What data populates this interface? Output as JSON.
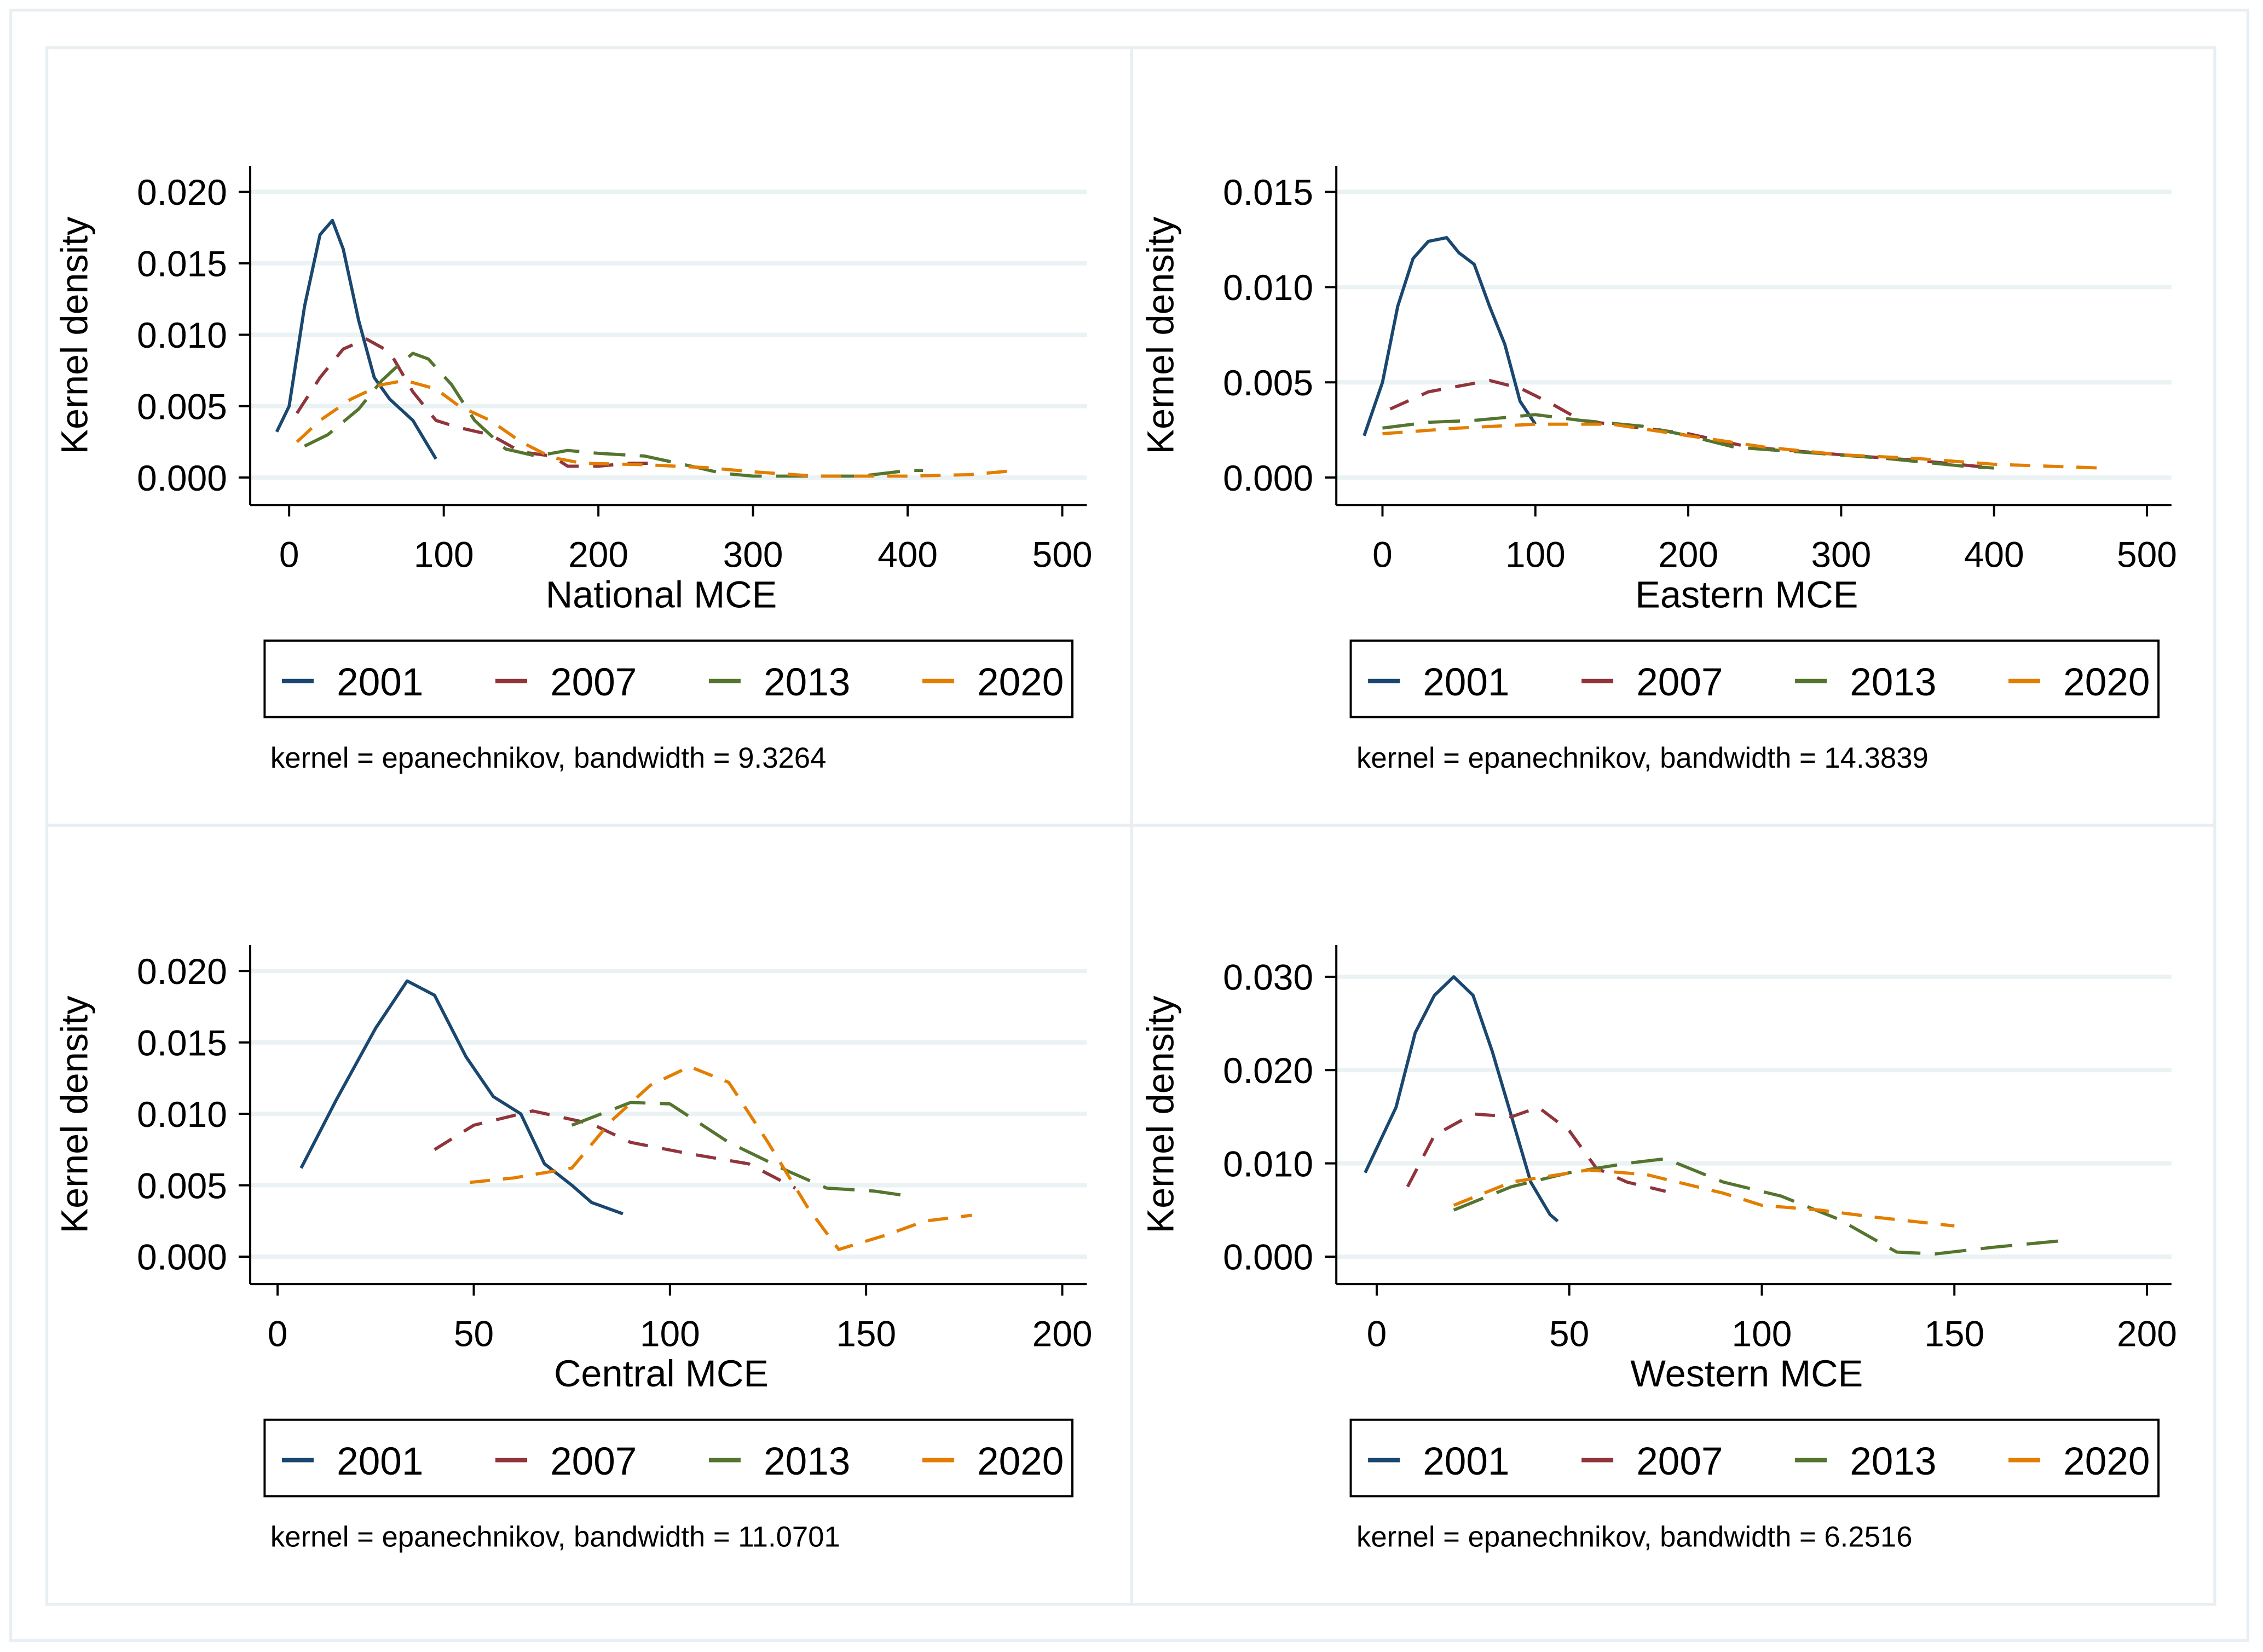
{
  "colors": {
    "2001": "#1a476f",
    "2007": "#90353b",
    "2013": "#55752f",
    "2020": "#e37e00"
  },
  "chart_data": [
    {
      "type": "line",
      "xlabel": "National MCE",
      "ylabel": "Kernel density",
      "xlim": [
        0,
        500
      ],
      "ylim": [
        0,
        0.02
      ],
      "xticks": [
        "0",
        "100",
        "200",
        "300",
        "400",
        "500"
      ],
      "yticks": [
        "0.000",
        "0.005",
        "0.010",
        "0.015",
        "0.020"
      ],
      "grid": true,
      "legend": [
        "2001",
        "2007",
        "2013",
        "2020"
      ],
      "legend_position": "bottom",
      "note": "kernel = epanechnikov, bandwidth = 9.3264",
      "series": [
        {
          "name": "2001",
          "points": [
            [
              -8,
              0.0032
            ],
            [
              0,
              0.005
            ],
            [
              10,
              0.012
            ],
            [
              20,
              0.017
            ],
            [
              28,
              0.018
            ],
            [
              35,
              0.016
            ],
            [
              45,
              0.011
            ],
            [
              55,
              0.007
            ],
            [
              65,
              0.0055
            ],
            [
              80,
              0.004
            ],
            [
              95,
              0.0013
            ]
          ]
        },
        {
          "name": "2007",
          "points": [
            [
              5,
              0.0045
            ],
            [
              20,
              0.007
            ],
            [
              35,
              0.009
            ],
            [
              50,
              0.0097
            ],
            [
              65,
              0.0088
            ],
            [
              80,
              0.006
            ],
            [
              95,
              0.004
            ],
            [
              110,
              0.0035
            ],
            [
              130,
              0.003
            ],
            [
              150,
              0.0018
            ],
            [
              170,
              0.0015
            ],
            [
              180,
              0.0008
            ],
            [
              200,
              0.0008
            ],
            [
              220,
              0.001
            ],
            [
              240,
              0.001
            ]
          ]
        },
        {
          "name": "2013",
          "points": [
            [
              10,
              0.0022
            ],
            [
              25,
              0.003
            ],
            [
              45,
              0.0048
            ],
            [
              60,
              0.0068
            ],
            [
              70,
              0.0078
            ],
            [
              80,
              0.0087
            ],
            [
              90,
              0.0083
            ],
            [
              105,
              0.0065
            ],
            [
              120,
              0.004
            ],
            [
              140,
              0.002
            ],
            [
              160,
              0.0015
            ],
            [
              180,
              0.0019
            ],
            [
              200,
              0.0017
            ],
            [
              230,
              0.0015
            ],
            [
              260,
              0.0008
            ],
            [
              280,
              0.0003
            ],
            [
              300,
              0.0001
            ],
            [
              340,
              0.0001
            ],
            [
              370,
              0.0001
            ],
            [
              400,
              0.0005
            ],
            [
              410,
              0.0005
            ]
          ]
        },
        {
          "name": "2020",
          "points": [
            [
              5,
              0.0025
            ],
            [
              20,
              0.004
            ],
            [
              40,
              0.0055
            ],
            [
              60,
              0.0065
            ],
            [
              75,
              0.0068
            ],
            [
              95,
              0.0062
            ],
            [
              110,
              0.005
            ],
            [
              130,
              0.004
            ],
            [
              150,
              0.0025
            ],
            [
              170,
              0.0014
            ],
            [
              190,
              0.001
            ],
            [
              230,
              0.0009
            ],
            [
              270,
              0.0007
            ],
            [
              300,
              0.0004
            ],
            [
              340,
              0.0001
            ],
            [
              400,
              0.0001
            ],
            [
              440,
              0.0002
            ],
            [
              470,
              0.0005
            ]
          ]
        }
      ]
    },
    {
      "type": "line",
      "xlabel": "Eastern MCE",
      "ylabel": "Kernel density",
      "xlim": [
        0,
        500
      ],
      "ylim": [
        0,
        0.015
      ],
      "xticks": [
        "0",
        "100",
        "200",
        "300",
        "400",
        "500"
      ],
      "yticks": [
        "0.000",
        "0.005",
        "0.010",
        "0.015"
      ],
      "grid": true,
      "legend": [
        "2001",
        "2007",
        "2013",
        "2020"
      ],
      "legend_position": "bottom",
      "note": "kernel = epanechnikov, bandwidth = 14.3839",
      "series": [
        {
          "name": "2001",
          "points": [
            [
              -12,
              0.0022
            ],
            [
              0,
              0.005
            ],
            [
              10,
              0.009
            ],
            [
              20,
              0.0115
            ],
            [
              30,
              0.0124
            ],
            [
              42,
              0.0126
            ],
            [
              50,
              0.0118
            ],
            [
              60,
              0.0112
            ],
            [
              70,
              0.009
            ],
            [
              80,
              0.007
            ],
            [
              90,
              0.004
            ],
            [
              100,
              0.0028
            ]
          ]
        },
        {
          "name": "2007",
          "points": [
            [
              5,
              0.0036
            ],
            [
              30,
              0.0045
            ],
            [
              50,
              0.0048
            ],
            [
              70,
              0.0051
            ],
            [
              90,
              0.0047
            ],
            [
              110,
              0.0039
            ],
            [
              130,
              0.003
            ],
            [
              160,
              0.0027
            ],
            [
              200,
              0.0023
            ],
            [
              240,
              0.0016
            ],
            [
              300,
              0.0012
            ],
            [
              350,
              0.0009
            ],
            [
              400,
              0.0005
            ]
          ]
        },
        {
          "name": "2013",
          "points": [
            [
              0,
              0.0026
            ],
            [
              30,
              0.0029
            ],
            [
              60,
              0.003
            ],
            [
              100,
              0.0033
            ],
            [
              130,
              0.003
            ],
            [
              170,
              0.0027
            ],
            [
              200,
              0.0022
            ],
            [
              230,
              0.0016
            ],
            [
              280,
              0.0013
            ],
            [
              330,
              0.001
            ],
            [
              380,
              0.0006
            ],
            [
              400,
              0.0005
            ]
          ]
        },
        {
          "name": "2020",
          "points": [
            [
              0,
              0.0023
            ],
            [
              50,
              0.0026
            ],
            [
              100,
              0.0028
            ],
            [
              150,
              0.0028
            ],
            [
              200,
              0.0022
            ],
            [
              250,
              0.0016
            ],
            [
              300,
              0.0012
            ],
            [
              350,
              0.001
            ],
            [
              400,
              0.0007
            ],
            [
              470,
              0.0005
            ]
          ]
        }
      ]
    },
    {
      "type": "line",
      "xlabel": "Central MCE",
      "ylabel": "Kernel density",
      "xlim": [
        0,
        200
      ],
      "ylim": [
        0,
        0.02
      ],
      "xticks": [
        "0",
        "50",
        "100",
        "150",
        "200"
      ],
      "yticks": [
        "0.000",
        "0.005",
        "0.010",
        "0.015",
        "0.020"
      ],
      "grid": true,
      "legend": [
        "2001",
        "2007",
        "2013",
        "2020"
      ],
      "legend_position": "bottom",
      "note": "kernel = epanechnikov, bandwidth = 11.0701",
      "series": [
        {
          "name": "2001",
          "points": [
            [
              6,
              0.0062
            ],
            [
              15,
              0.011
            ],
            [
              25,
              0.016
            ],
            [
              33,
              0.0193
            ],
            [
              40,
              0.0183
            ],
            [
              48,
              0.014
            ],
            [
              55,
              0.0112
            ],
            [
              62,
              0.01
            ],
            [
              68,
              0.0065
            ],
            [
              75,
              0.005
            ],
            [
              80,
              0.0038
            ],
            [
              88,
              0.003
            ]
          ]
        },
        {
          "name": "2007",
          "points": [
            [
              40,
              0.0075
            ],
            [
              50,
              0.0092
            ],
            [
              65,
              0.0102
            ],
            [
              80,
              0.0093
            ],
            [
              90,
              0.008
            ],
            [
              105,
              0.0072
            ],
            [
              120,
              0.0065
            ],
            [
              132,
              0.0048
            ]
          ]
        },
        {
          "name": "2013",
          "points": [
            [
              75,
              0.0092
            ],
            [
              90,
              0.0108
            ],
            [
              100,
              0.0107
            ],
            [
              115,
              0.008
            ],
            [
              130,
              0.006
            ],
            [
              140,
              0.0048
            ],
            [
              152,
              0.0046
            ],
            [
              162,
              0.0042
            ]
          ]
        },
        {
          "name": "2020",
          "points": [
            [
              49,
              0.0052
            ],
            [
              60,
              0.0055
            ],
            [
              75,
              0.0062
            ],
            [
              85,
              0.0095
            ],
            [
              95,
              0.012
            ],
            [
              105,
              0.0133
            ],
            [
              115,
              0.0122
            ],
            [
              125,
              0.008
            ],
            [
              135,
              0.0035
            ],
            [
              143,
              0.0005
            ],
            [
              155,
              0.0015
            ],
            [
              165,
              0.0025
            ],
            [
              177,
              0.0029
            ]
          ]
        }
      ]
    },
    {
      "type": "line",
      "xlabel": "Western MCE",
      "ylabel": "Kernel density",
      "xlim": [
        0,
        200
      ],
      "ylim": [
        0,
        0.03
      ],
      "xticks": [
        "0",
        "50",
        "100",
        "150",
        "200"
      ],
      "yticks": [
        "0.000",
        "0.010",
        "0.020",
        "0.030"
      ],
      "grid": true,
      "legend": [
        "2001",
        "2007",
        "2013",
        "2020"
      ],
      "legend_position": "bottom",
      "note": "kernel = epanechnikov, bandwidth = 6.2516",
      "series": [
        {
          "name": "2001",
          "points": [
            [
              -3,
              0.009
            ],
            [
              5,
              0.016
            ],
            [
              10,
              0.024
            ],
            [
              15,
              0.028
            ],
            [
              20,
              0.03
            ],
            [
              25,
              0.028
            ],
            [
              30,
              0.022
            ],
            [
              35,
              0.015
            ],
            [
              40,
              0.008
            ],
            [
              45,
              0.0045
            ],
            [
              47,
              0.0038
            ]
          ]
        },
        {
          "name": "2007",
          "points": [
            [
              8,
              0.0075
            ],
            [
              15,
              0.013
            ],
            [
              25,
              0.0153
            ],
            [
              35,
              0.015
            ],
            [
              42,
              0.016
            ],
            [
              50,
              0.0135
            ],
            [
              57,
              0.0095
            ],
            [
              65,
              0.008
            ],
            [
              75,
              0.007
            ]
          ]
        },
        {
          "name": "2013",
          "points": [
            [
              20,
              0.005
            ],
            [
              35,
              0.0075
            ],
            [
              50,
              0.009
            ],
            [
              65,
              0.01
            ],
            [
              75,
              0.0105
            ],
            [
              90,
              0.008
            ],
            [
              105,
              0.0065
            ],
            [
              120,
              0.004
            ],
            [
              135,
              0.0005
            ],
            [
              145,
              0.0003
            ],
            [
              160,
              0.001
            ],
            [
              180,
              0.0018
            ]
          ]
        },
        {
          "name": "2020",
          "points": [
            [
              20,
              0.0055
            ],
            [
              35,
              0.008
            ],
            [
              55,
              0.0093
            ],
            [
              70,
              0.0088
            ],
            [
              90,
              0.0068
            ],
            [
              100,
              0.0055
            ],
            [
              115,
              0.005
            ],
            [
              130,
              0.0042
            ],
            [
              150,
              0.0033
            ]
          ]
        }
      ]
    }
  ]
}
